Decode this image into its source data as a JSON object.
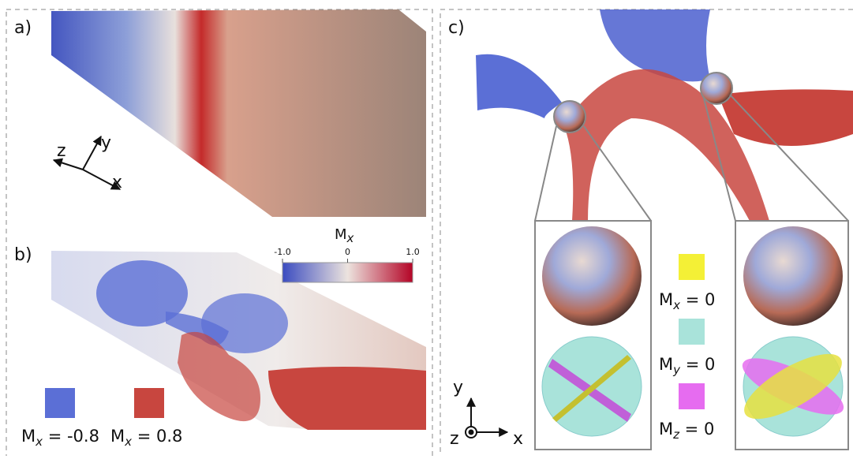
{
  "panels": {
    "a": "a)",
    "b": "b)",
    "c": "c)"
  },
  "axes_a": {
    "z": "z",
    "y": "y",
    "x": "x"
  },
  "colorbar": {
    "symbol": "M",
    "subscript": "x",
    "range": [
      -1,
      1
    ],
    "ticks": [
      {
        "value": -1,
        "label": "-1.0"
      },
      0,
      {
        "value": 1,
        "label": "1.0"
      }
    ]
  },
  "legend_b": [
    {
      "symbol": "M",
      "subscript": "x",
      "rest": " = -0.8",
      "color": "#5b6fd6"
    },
    {
      "symbol": "M",
      "subscript": "x",
      "rest": " = 0.8",
      "color": "#c8463f"
    }
  ],
  "legend_c": [
    {
      "symbol": "M",
      "subscript": "x",
      "rest": " = 0",
      "color": "#f4f036"
    },
    {
      "symbol": "M",
      "subscript": "y",
      "rest": " = 0",
      "color": "#a9e3da"
    },
    {
      "symbol": "M",
      "subscript": "z",
      "rest": " = 0",
      "color": "#e66cf0"
    }
  ],
  "axes_c": {
    "y": "y",
    "z": "z",
    "x": "x"
  }
}
